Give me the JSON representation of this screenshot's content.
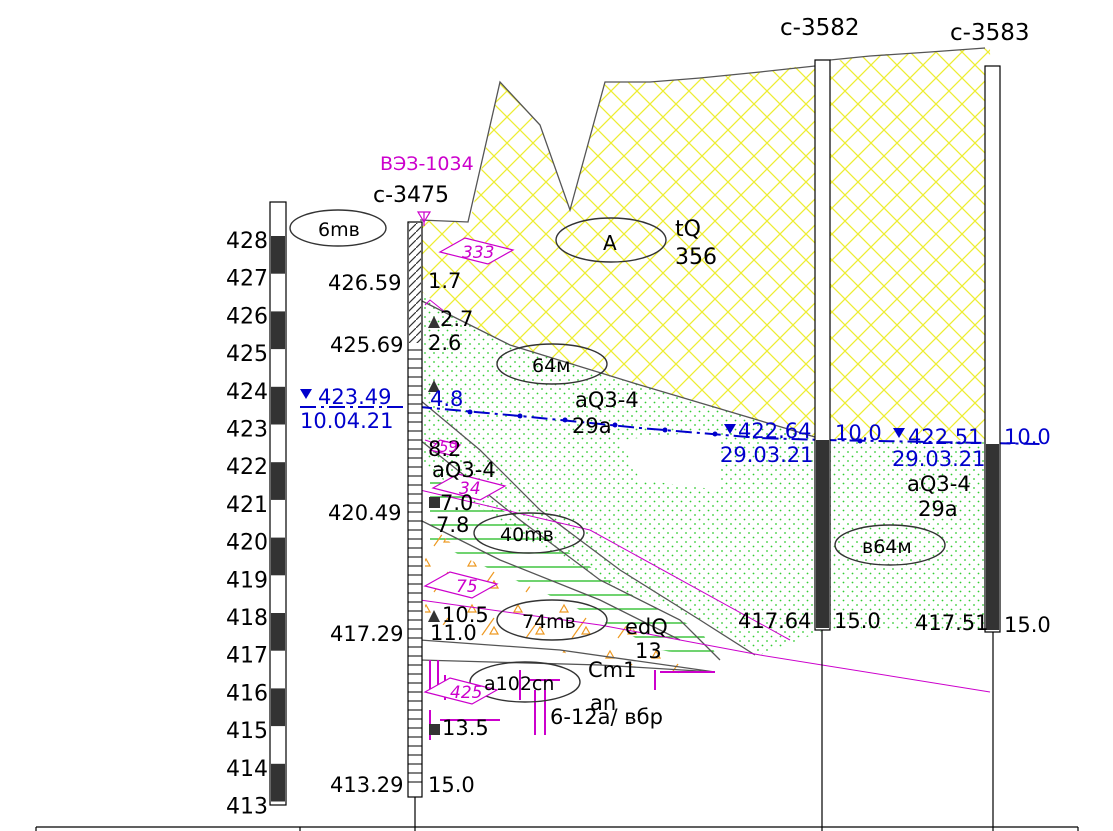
{
  "boreholes": {
    "left": {
      "name": "c-3475",
      "vez": "ВЭЗ-1034"
    },
    "mid": {
      "name": "c-3582"
    },
    "right": {
      "name": "c-3583"
    }
  },
  "scale": {
    "ticks": [
      "428",
      "427",
      "426",
      "425",
      "424",
      "423",
      "422",
      "421",
      "420",
      "419",
      "418",
      "417",
      "416",
      "415",
      "414",
      "413"
    ]
  },
  "left_elevations": {
    "e1": "426.59",
    "e2": "425.69",
    "e3": "420.49",
    "e4": "417.29",
    "e5": "413.29"
  },
  "left_depths": {
    "d1": "1.7",
    "d2": "2.7",
    "d3": "2.6",
    "d4": "4.8",
    "d5": "8.2",
    "d6": "7.0",
    "d7": "7.8",
    "d8": "10.5",
    "d9": "11.0",
    "d10": "13.5",
    "d11": "15.0"
  },
  "water": {
    "left_level": "423.49",
    "left_date": "10.04.21",
    "mid_level": "422.64",
    "mid_date": "29.03.21",
    "mid_depth": "10.0",
    "right_level": "422.51",
    "right_date": "29.03.21",
    "right_depth": "10.0"
  },
  "bottoms": {
    "mid_elev": "417.64",
    "mid_depth": "15.0",
    "right_elev": "417.51",
    "right_depth": "15.0"
  },
  "layer_labels": {
    "l6": "6mв",
    "l64": "64м",
    "l40": "40mв",
    "l74": "74mв",
    "l102": "a102cn",
    "lb64": "в64м",
    "lA": "А"
  },
  "geo_labels": {
    "tQ": "tQ",
    "tQ_num": "356",
    "aQ1": "aQ3-4",
    "aQ1_num": "29a",
    "aQ2": "aQ3-4",
    "aQ3": "aQ3-4",
    "aQ3_num": "29a",
    "edQ": "edQ",
    "edQ_num": "13",
    "Cm": "Cm1",
    "Cm_num": "an",
    "Cm_desc": "6-12a/ вбр"
  },
  "diamond_labels": {
    "dm1": "333",
    "dm2": "34",
    "dm3": "75",
    "dm4": "425",
    "dm5": "59"
  },
  "colors": {
    "hatch_yellow": "#eded33",
    "dots_green": "#33cc33",
    "hatch_green": "#22bb22",
    "orange": "#ee9922",
    "magenta": "#cc00cc",
    "blue": "#0000cc"
  }
}
